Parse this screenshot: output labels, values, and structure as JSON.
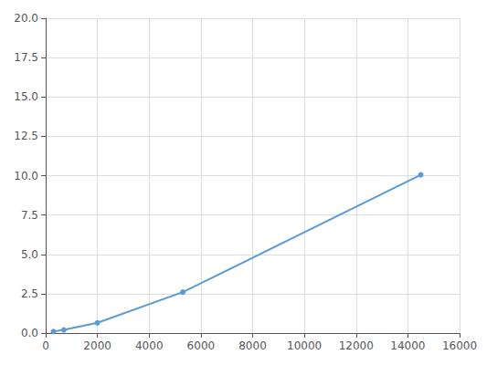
{
  "chart_data": {
    "type": "line",
    "x": [
      300,
      700,
      2000,
      5300,
      14500
    ],
    "values": [
      0.1,
      0.2,
      0.65,
      2.6,
      10.05
    ],
    "color": "#5b9bd5",
    "marker": "circle",
    "xlim": [
      0,
      16000
    ],
    "ylim": [
      0.0,
      20.0
    ],
    "xticks": [
      0,
      2000,
      4000,
      6000,
      8000,
      10000,
      12000,
      14000,
      16000
    ],
    "yticks": [
      {
        "value": 0,
        "label": "0.0"
      },
      2.5,
      {
        "value": 5,
        "label": "5.0"
      },
      7.5,
      {
        "value": 10,
        "label": "10.0"
      },
      12.5,
      {
        "value": 15,
        "label": "15.0"
      },
      17.5,
      {
        "value": 20,
        "label": "20.0"
      }
    ],
    "grid": true
  }
}
